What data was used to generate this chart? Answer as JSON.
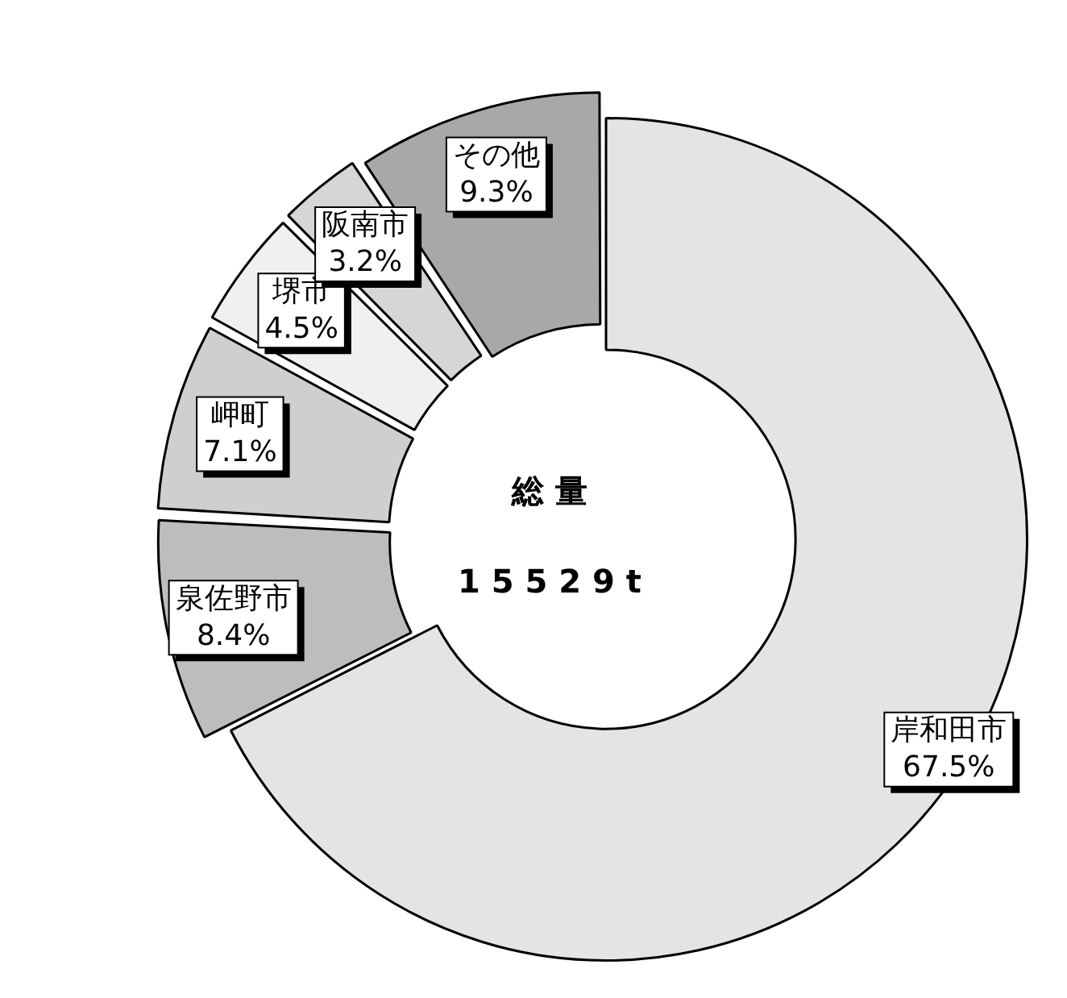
{
  "chart_data": {
    "type": "donut",
    "categories": [
      "岸和田市",
      "泉佐野市",
      "岬町",
      "堺市",
      "阪南市",
      "その他"
    ],
    "values": [
      67.5,
      8.4,
      7.1,
      4.5,
      3.2,
      9.3
    ],
    "colors": [
      "#e4e4e4",
      "#bdbdbd",
      "#cfcfcf",
      "#f0f0f0",
      "#d6d6d6",
      "#a8a8a8"
    ],
    "value_labels": [
      "67.5%",
      "8.4%",
      "7.1%",
      "4.5%",
      "3.2%",
      "9.3%"
    ],
    "annotations": [
      "総 量",
      "1 5 5 2 9 t"
    ],
    "legend": false
  }
}
